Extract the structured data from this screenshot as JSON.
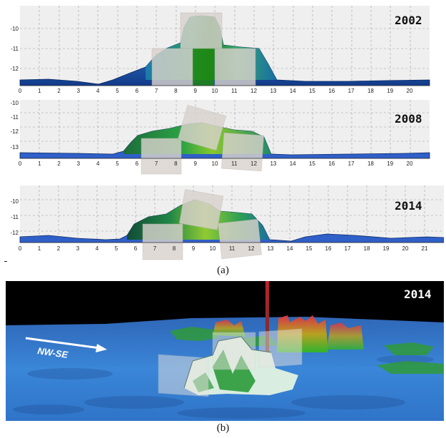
{
  "panels": [
    {
      "year": "2002",
      "xticks": [
        "0",
        "1",
        "2",
        "3",
        "4",
        "5",
        "6",
        "7",
        "8",
        "9",
        "10",
        "11",
        "12",
        "13",
        "14",
        "15",
        "16",
        "17",
        "18",
        "19",
        "20"
      ],
      "yticks": [
        "-10",
        "-11",
        "-12"
      ]
    },
    {
      "year": "2008",
      "xticks": [
        "0",
        "1",
        "2",
        "3",
        "4",
        "5",
        "6",
        "7",
        "8",
        "9",
        "10",
        "11",
        "12",
        "13",
        "14",
        "15",
        "16",
        "17",
        "18",
        "19",
        "20"
      ],
      "yticks": [
        "-10",
        "-11",
        "-12",
        "-13"
      ]
    },
    {
      "year": "2014",
      "xticks": [
        "0",
        "1",
        "2",
        "3",
        "4",
        "5",
        "6",
        "7",
        "8",
        "9",
        "10",
        "11",
        "12",
        "13",
        "14",
        "15",
        "16",
        "17",
        "18",
        "19",
        "20",
        "21"
      ],
      "yticks": [
        "-10",
        "-11",
        "-12"
      ]
    }
  ],
  "caption_a": "(a)",
  "caption_b": "(b)",
  "render": {
    "year": "2014",
    "arrow_label": "NW-SE"
  },
  "colors": {
    "water": "#2f6fd0",
    "seafloor_top": "#3a8fe0",
    "structure_green": "#2fb32f",
    "panel_bg": "#efefef"
  }
}
